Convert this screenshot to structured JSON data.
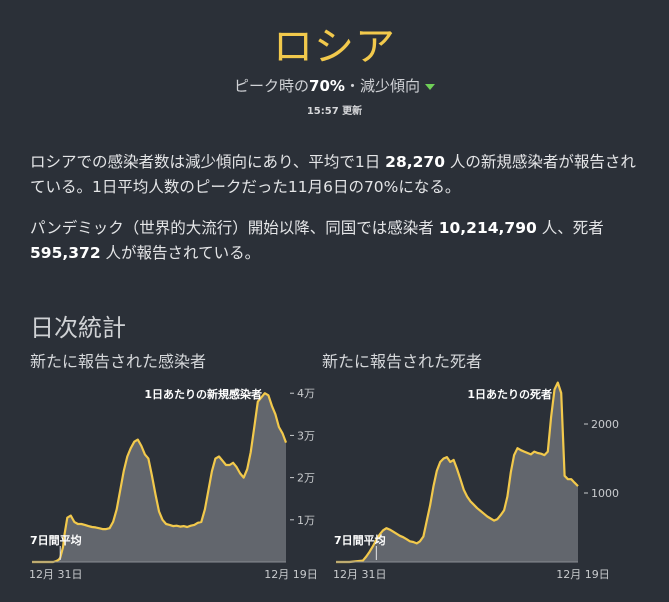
{
  "header": {
    "title": "ロシア",
    "subtitle_prefix": "ピーク時の",
    "subtitle_percent": "70%",
    "subtitle_suffix": "・減少傾向",
    "updated": "15:57 更新"
  },
  "summary": {
    "p1_a": "ロシアでの感染者数は減少傾向にあり、平均で1日 ",
    "p1_num": "28,270",
    "p1_b": " 人の新規感染者が報告されている。1日平均人数のピークだった11月6日の70%になる。",
    "p2_a": "パンデミック（世界的大流行）開始以降、同国では感染者 ",
    "p2_cases": "10,214,790",
    "p2_b": " 人、死者 ",
    "p2_deaths": "595,372",
    "p2_c": " 人が報告されている。"
  },
  "section_title": "日次統計",
  "colors": {
    "line": "#f2c94c",
    "area": "#62666d",
    "background": "#2b3038",
    "trend_down": "#6fcf57"
  },
  "chart_data": [
    {
      "type": "area",
      "title": "新たに報告された感染者",
      "series_label": "1日あたりの新規感染者",
      "avg_label": "7日間平均",
      "x_start_label": "12月 31日",
      "x_end_label": "12月 19日",
      "x_range": [
        0,
        720
      ],
      "ylim": [
        0,
        41000
      ],
      "yticks": [
        10000,
        20000,
        30000,
        40000
      ],
      "ytick_labels": [
        "1万",
        "2万",
        "3万",
        "4万"
      ],
      "x": [
        0,
        30,
        60,
        68,
        75,
        80,
        88,
        92,
        100,
        110,
        120,
        130,
        140,
        150,
        160,
        170,
        180,
        190,
        200,
        210,
        220,
        230,
        240,
        250,
        260,
        270,
        280,
        290,
        300,
        310,
        320,
        330,
        340,
        350,
        360,
        370,
        380,
        390,
        400,
        410,
        420,
        430,
        440,
        450,
        460,
        470,
        480,
        490,
        500,
        510,
        520,
        530,
        540,
        550,
        560,
        570,
        580,
        590,
        600,
        610,
        620,
        630,
        640,
        650,
        660,
        670,
        680,
        690,
        700,
        710,
        720
      ],
      "values": [
        0,
        0,
        0,
        200,
        500,
        1000,
        3500,
        6500,
        10500,
        11000,
        9500,
        9000,
        9000,
        8800,
        8500,
        8300,
        8200,
        8000,
        7800,
        7800,
        8000,
        9500,
        12500,
        17000,
        21500,
        25000,
        27000,
        28500,
        29000,
        27500,
        25500,
        24500,
        20500,
        16000,
        12000,
        10000,
        9000,
        8800,
        8500,
        8600,
        8400,
        8500,
        8300,
        8600,
        8800,
        9300,
        9500,
        12500,
        17000,
        21500,
        24500,
        25000,
        24000,
        23000,
        23000,
        23500,
        22500,
        21000,
        20000,
        22000,
        26000,
        32000,
        38000,
        39000,
        40000,
        39500,
        37000,
        35000,
        32000,
        30500,
        28300
      ]
    },
    {
      "type": "area",
      "title": "新たに報告された死者",
      "series_label": "1日あたりの死者",
      "avg_label": "7日間平均",
      "x_start_label": "12月 31日",
      "x_end_label": "12月 19日",
      "x_range": [
        0,
        720
      ],
      "ylim": [
        0,
        2580
      ],
      "yticks": [
        1000,
        2000
      ],
      "ytick_labels": [
        "1000",
        "2000"
      ],
      "x": [
        0,
        40,
        80,
        90,
        100,
        110,
        120,
        130,
        140,
        150,
        160,
        170,
        180,
        190,
        200,
        210,
        220,
        230,
        240,
        250,
        260,
        270,
        280,
        290,
        300,
        310,
        320,
        330,
        340,
        350,
        360,
        370,
        380,
        390,
        400,
        410,
        420,
        430,
        440,
        450,
        460,
        470,
        480,
        490,
        500,
        510,
        520,
        530,
        540,
        550,
        560,
        570,
        580,
        590,
        600,
        610,
        620,
        630,
        640,
        650,
        660,
        670,
        680,
        690,
        700,
        710,
        720
      ],
      "values": [
        0,
        0,
        20,
        80,
        150,
        230,
        320,
        400,
        460,
        490,
        470,
        440,
        410,
        380,
        360,
        330,
        300,
        290,
        270,
        300,
        370,
        600,
        820,
        1100,
        1320,
        1450,
        1500,
        1520,
        1450,
        1480,
        1350,
        1200,
        1050,
        950,
        880,
        830,
        780,
        740,
        700,
        660,
        630,
        600,
        620,
        680,
        750,
        950,
        1300,
        1550,
        1650,
        1620,
        1600,
        1580,
        1560,
        1600,
        1580,
        1570,
        1550,
        1600,
        2100,
        2500,
        2600,
        2450,
        1250,
        1200,
        1200,
        1150,
        1100
      ]
    }
  ]
}
